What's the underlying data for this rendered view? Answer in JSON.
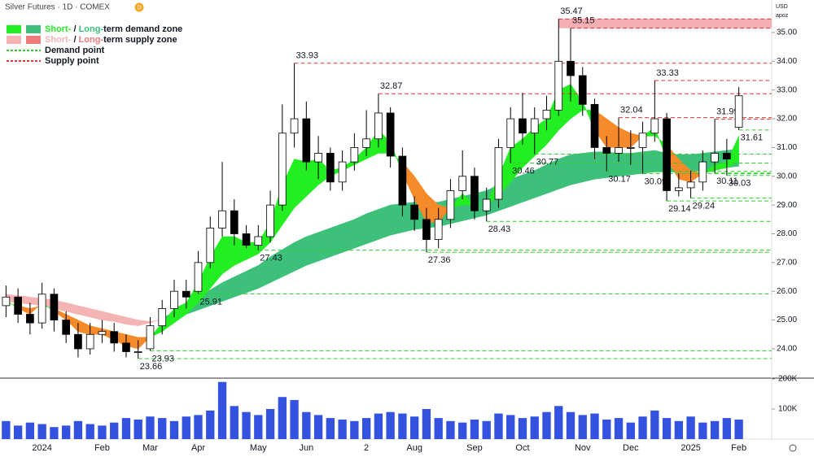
{
  "chart_data": {
    "type": "candlestick",
    "header": "Silver Futures · 1D · COMEX",
    "badge": "D",
    "currency": "USD",
    "unit": "apoz",
    "categories": [
      null,
      null,
      null,
      "2024",
      null,
      null,
      null,
      null,
      "Feb",
      null,
      null,
      null,
      "Mar",
      null,
      null,
      null,
      "Apr",
      null,
      null,
      null,
      null,
      "May",
      null,
      null,
      null,
      "Jun",
      null,
      null,
      null,
      null,
      "2",
      null,
      null,
      null,
      "Aug",
      null,
      null,
      null,
      null,
      "Sep",
      null,
      null,
      null,
      "Oct",
      null,
      null,
      null,
      null,
      "Nov",
      null,
      null,
      null,
      "Dec",
      null,
      null,
      null,
      null,
      "2025",
      null,
      null,
      null,
      "Feb"
    ],
    "open": [
      25.5,
      25.8,
      25.2,
      24.9,
      25.9,
      25.0,
      24.5,
      24.0,
      24.5,
      24.6,
      24.2,
      23.9,
      24.0,
      24.8,
      25.4,
      26.0,
      26.0,
      27.0,
      28.2,
      28.8,
      28.0,
      27.6,
      27.9,
      29.0,
      31.5,
      32.0,
      30.5,
      30.8,
      29.8,
      30.5,
      31.0,
      31.3,
      32.2,
      30.7,
      29.0,
      28.5,
      27.8,
      28.5,
      29.5,
      30.0,
      28.8,
      29.2,
      31.0,
      32.0,
      31.5,
      32.0,
      32.3,
      34.0,
      33.5,
      32.5,
      31.0,
      30.8,
      31.0,
      31.0,
      31.5,
      32.0,
      29.5,
      29.6,
      29.8,
      30.5,
      30.8,
      31.7
    ],
    "high": [
      26.2,
      26.1,
      25.6,
      26.3,
      26.1,
      25.3,
      24.9,
      24.9,
      25.0,
      24.9,
      24.5,
      24.3,
      25.1,
      25.7,
      26.4,
      26.4,
      27.4,
      28.6,
      30.5,
      29.2,
      28.3,
      28.3,
      29.5,
      32.5,
      33.93,
      32.6,
      31.4,
      31.0,
      30.9,
      31.5,
      32.3,
      32.87,
      32.4,
      31.0,
      29.3,
      28.9,
      28.9,
      29.9,
      30.9,
      30.3,
      29.6,
      31.3,
      32.4,
      32.9,
      32.4,
      32.8,
      35.47,
      35.15,
      33.8,
      32.7,
      31.4,
      32.04,
      31.6,
      31.9,
      33.33,
      32.2,
      30.1,
      30.2,
      30.9,
      31.99,
      31.3,
      33.1
    ],
    "low": [
      25.1,
      24.9,
      24.5,
      24.7,
      24.6,
      24.2,
      23.7,
      23.8,
      24.2,
      23.9,
      23.7,
      23.66,
      23.93,
      24.5,
      25.1,
      25.4,
      25.91,
      26.8,
      27.9,
      27.6,
      27.5,
      27.43,
      27.7,
      28.8,
      31.0,
      30.2,
      29.9,
      29.5,
      29.5,
      30.2,
      30.7,
      31.0,
      30.3,
      28.6,
      28.1,
      27.36,
      27.5,
      28.2,
      29.2,
      28.5,
      28.43,
      28.9,
      30.46,
      31.1,
      30.77,
      31.6,
      32.1,
      32.6,
      32.1,
      30.6,
      30.17,
      30.5,
      30.4,
      30.09,
      31.2,
      29.14,
      29.3,
      29.24,
      29.5,
      30.11,
      30.03,
      31.61
    ],
    "close": [
      25.8,
      25.2,
      24.9,
      25.9,
      25.0,
      24.5,
      24.0,
      24.5,
      24.6,
      24.2,
      23.9,
      23.9,
      24.8,
      25.4,
      26.0,
      25.8,
      27.0,
      28.2,
      28.8,
      28.0,
      27.6,
      27.9,
      29.0,
      31.5,
      32.0,
      30.5,
      30.8,
      29.8,
      30.5,
      31.0,
      31.3,
      32.2,
      30.7,
      29.0,
      28.5,
      27.8,
      28.5,
      29.5,
      30.0,
      28.8,
      29.2,
      31.0,
      32.0,
      31.5,
      32.0,
      32.3,
      34.0,
      33.5,
      32.5,
      31.0,
      30.8,
      31.0,
      31.0,
      31.5,
      32.0,
      29.5,
      29.6,
      29.8,
      30.5,
      30.8,
      30.6,
      32.8
    ],
    "ylim": [
      22.98,
      36.13
    ],
    "yticks": [
      {
        "value": 24,
        "label": "24.00"
      },
      {
        "value": 25,
        "label": "25.00"
      },
      {
        "value": 26,
        "label": "26.00"
      },
      {
        "value": 27,
        "label": "27.00"
      },
      {
        "value": 28,
        "label": "28.00"
      },
      {
        "value": 29,
        "label": "29.00"
      },
      {
        "value": 30,
        "label": "30.00"
      },
      {
        "value": 31,
        "label": "31.00"
      },
      {
        "value": 32,
        "label": "32.00"
      },
      {
        "value": 33,
        "label": "33.00"
      },
      {
        "value": 34,
        "label": "34.00"
      },
      {
        "value": 35,
        "label": "35.00"
      }
    ],
    "zones": [
      {
        "fast": [
          25.65,
          25.6,
          25.55,
          25.5,
          25.4,
          25.3,
          25.2,
          25.1,
          25.0,
          24.95,
          24.85,
          24.8,
          24.9,
          25.05,
          25.3,
          25.5,
          25.8,
          26.05,
          26.3,
          26.5,
          26.7,
          26.9,
          27.2,
          27.45,
          27.7,
          27.9,
          28.05,
          28.2,
          28.35,
          28.5,
          28.7,
          28.85,
          29.0,
          29.05,
          29.1,
          29.1,
          29.1,
          29.2,
          29.3,
          29.4,
          29.5,
          29.7,
          29.9,
          30.05,
          30.2,
          30.4,
          30.6,
          30.75,
          30.8,
          30.85,
          30.85,
          30.8,
          30.8,
          30.85,
          30.9,
          30.8,
          30.75,
          30.75,
          30.8,
          30.85,
          30.9,
          30.95
        ],
        "slow": [
          25.9,
          25.85,
          25.8,
          25.75,
          25.7,
          25.6,
          25.5,
          25.4,
          25.3,
          25.2,
          25.1,
          25.0,
          24.95,
          25.0,
          25.1,
          25.2,
          25.35,
          25.5,
          25.65,
          25.8,
          25.95,
          26.1,
          26.3,
          26.5,
          26.7,
          26.9,
          27.05,
          27.2,
          27.35,
          27.5,
          27.65,
          27.8,
          27.95,
          28.05,
          28.15,
          28.2,
          28.25,
          28.35,
          28.45,
          28.55,
          28.65,
          28.8,
          28.95,
          29.1,
          29.25,
          29.4,
          29.55,
          29.7,
          29.8,
          29.9,
          29.95,
          30.0,
          30.05,
          30.1,
          30.15,
          30.15,
          30.15,
          30.15,
          30.2,
          30.25,
          30.3,
          30.35
        ],
        "colors": [
          "#3cc07a",
          "#f5b4b4"
        ]
      },
      {
        "fast": [
          25.7,
          25.4,
          25.2,
          25.6,
          25.3,
          25.0,
          24.6,
          24.5,
          24.5,
          24.3,
          24.1,
          24.0,
          24.4,
          24.9,
          25.4,
          25.6,
          26.3,
          27.2,
          27.9,
          27.9,
          27.7,
          27.7,
          28.4,
          29.7,
          30.6,
          30.5,
          30.6,
          30.2,
          30.3,
          30.6,
          31.0,
          31.6,
          31.2,
          30.1,
          29.2,
          28.4,
          28.4,
          28.9,
          29.4,
          29.0,
          29.0,
          30.0,
          31.0,
          31.3,
          31.7,
          32.0,
          33.0,
          33.2,
          32.6,
          31.6,
          31.0,
          31.0,
          31.0,
          31.4,
          31.7,
          30.6,
          29.9,
          29.8,
          30.1,
          30.4,
          30.5,
          31.4
        ],
        "slow": [
          25.6,
          25.5,
          25.4,
          25.5,
          25.4,
          25.2,
          25.0,
          24.8,
          24.7,
          24.6,
          24.5,
          24.4,
          24.4,
          24.6,
          24.9,
          25.2,
          25.6,
          26.1,
          26.6,
          26.9,
          27.1,
          27.3,
          27.7,
          28.3,
          28.9,
          29.3,
          29.7,
          30.0,
          30.2,
          30.4,
          30.6,
          30.8,
          30.8,
          30.5,
          30.0,
          29.4,
          29.0,
          28.9,
          29.0,
          29.0,
          29.0,
          29.3,
          29.8,
          30.3,
          30.7,
          31.1,
          31.6,
          32.0,
          32.3,
          32.3,
          32.0,
          31.7,
          31.5,
          31.4,
          31.4,
          31.1,
          30.6,
          30.2,
          30.1,
          30.2,
          30.3,
          30.5
        ],
        "colors": [
          "#22ee22",
          "#f58a2a"
        ]
      }
    ],
    "levels": [
      {
        "value": 33.93,
        "kind": "supply"
      },
      {
        "value": 32.87,
        "kind": "supply"
      },
      {
        "value": 35.47,
        "kind": "supply"
      },
      {
        "value": 35.15,
        "kind": "supply"
      },
      {
        "value": 33.33,
        "kind": "supply"
      },
      {
        "value": 32.04,
        "kind": "supply"
      },
      {
        "value": 31.99,
        "kind": "supply"
      },
      {
        "value": 23.66,
        "kind": "demand"
      },
      {
        "value": 23.93,
        "kind": "demand"
      },
      {
        "value": 25.91,
        "kind": "demand"
      },
      {
        "value": 27.43,
        "kind": "demand"
      },
      {
        "value": 27.36,
        "kind": "demand"
      },
      {
        "value": 28.43,
        "kind": "demand"
      },
      {
        "value": 30.46,
        "kind": "demand"
      },
      {
        "value": 30.77,
        "kind": "demand"
      },
      {
        "value": 30.17,
        "kind": "demand"
      },
      {
        "value": 30.09,
        "kind": "demand"
      },
      {
        "value": 29.14,
        "kind": "demand"
      },
      {
        "value": 29.24,
        "kind": "demand"
      },
      {
        "value": 30.11,
        "kind": "demand"
      },
      {
        "value": 30.03,
        "kind": "demand"
      },
      {
        "value": 31.61,
        "kind": "demand"
      }
    ],
    "supply_zone": {
      "lower": 35.15,
      "upper": 35.47,
      "color": "#f4a0a8"
    },
    "legend": [
      {
        "parts": [
          "Short-",
          " / ",
          "Long-",
          "term demand zone"
        ],
        "colors": [
          "#22ee22",
          "#3cc07a"
        ]
      },
      {
        "parts": [
          "Short-",
          " / ",
          "Long-",
          "term supply zone"
        ],
        "colors": [
          "#f5b4b4",
          "#f07a7a"
        ]
      },
      {
        "text": "Demand point",
        "color": "#33cc33",
        "kind": "demand"
      },
      {
        "text": "Supply point",
        "color": "#e03a3a",
        "kind": "supply"
      }
    ],
    "volume": {
      "values": [
        60000,
        45000,
        55000,
        50000,
        40000,
        45000,
        60000,
        50000,
        45000,
        55000,
        70000,
        65000,
        75000,
        70000,
        60000,
        75000,
        80000,
        95000,
        190000,
        110000,
        90000,
        80000,
        100000,
        140000,
        130000,
        90000,
        80000,
        70000,
        65000,
        60000,
        70000,
        85000,
        90000,
        85000,
        75000,
        100000,
        70000,
        60000,
        55000,
        65000,
        60000,
        85000,
        80000,
        70000,
        75000,
        90000,
        110000,
        90000,
        80000,
        85000,
        65000,
        70000,
        55000,
        75000,
        95000,
        70000,
        60000,
        75000,
        55000,
        60000,
        70000,
        65000
      ],
      "color": "#3452e0",
      "ylim": [
        0,
        200000
      ],
      "yticks": [
        {
          "value": 100000,
          "label": "100K"
        },
        {
          "value": 200000,
          "label": "200K"
        }
      ]
    }
  }
}
